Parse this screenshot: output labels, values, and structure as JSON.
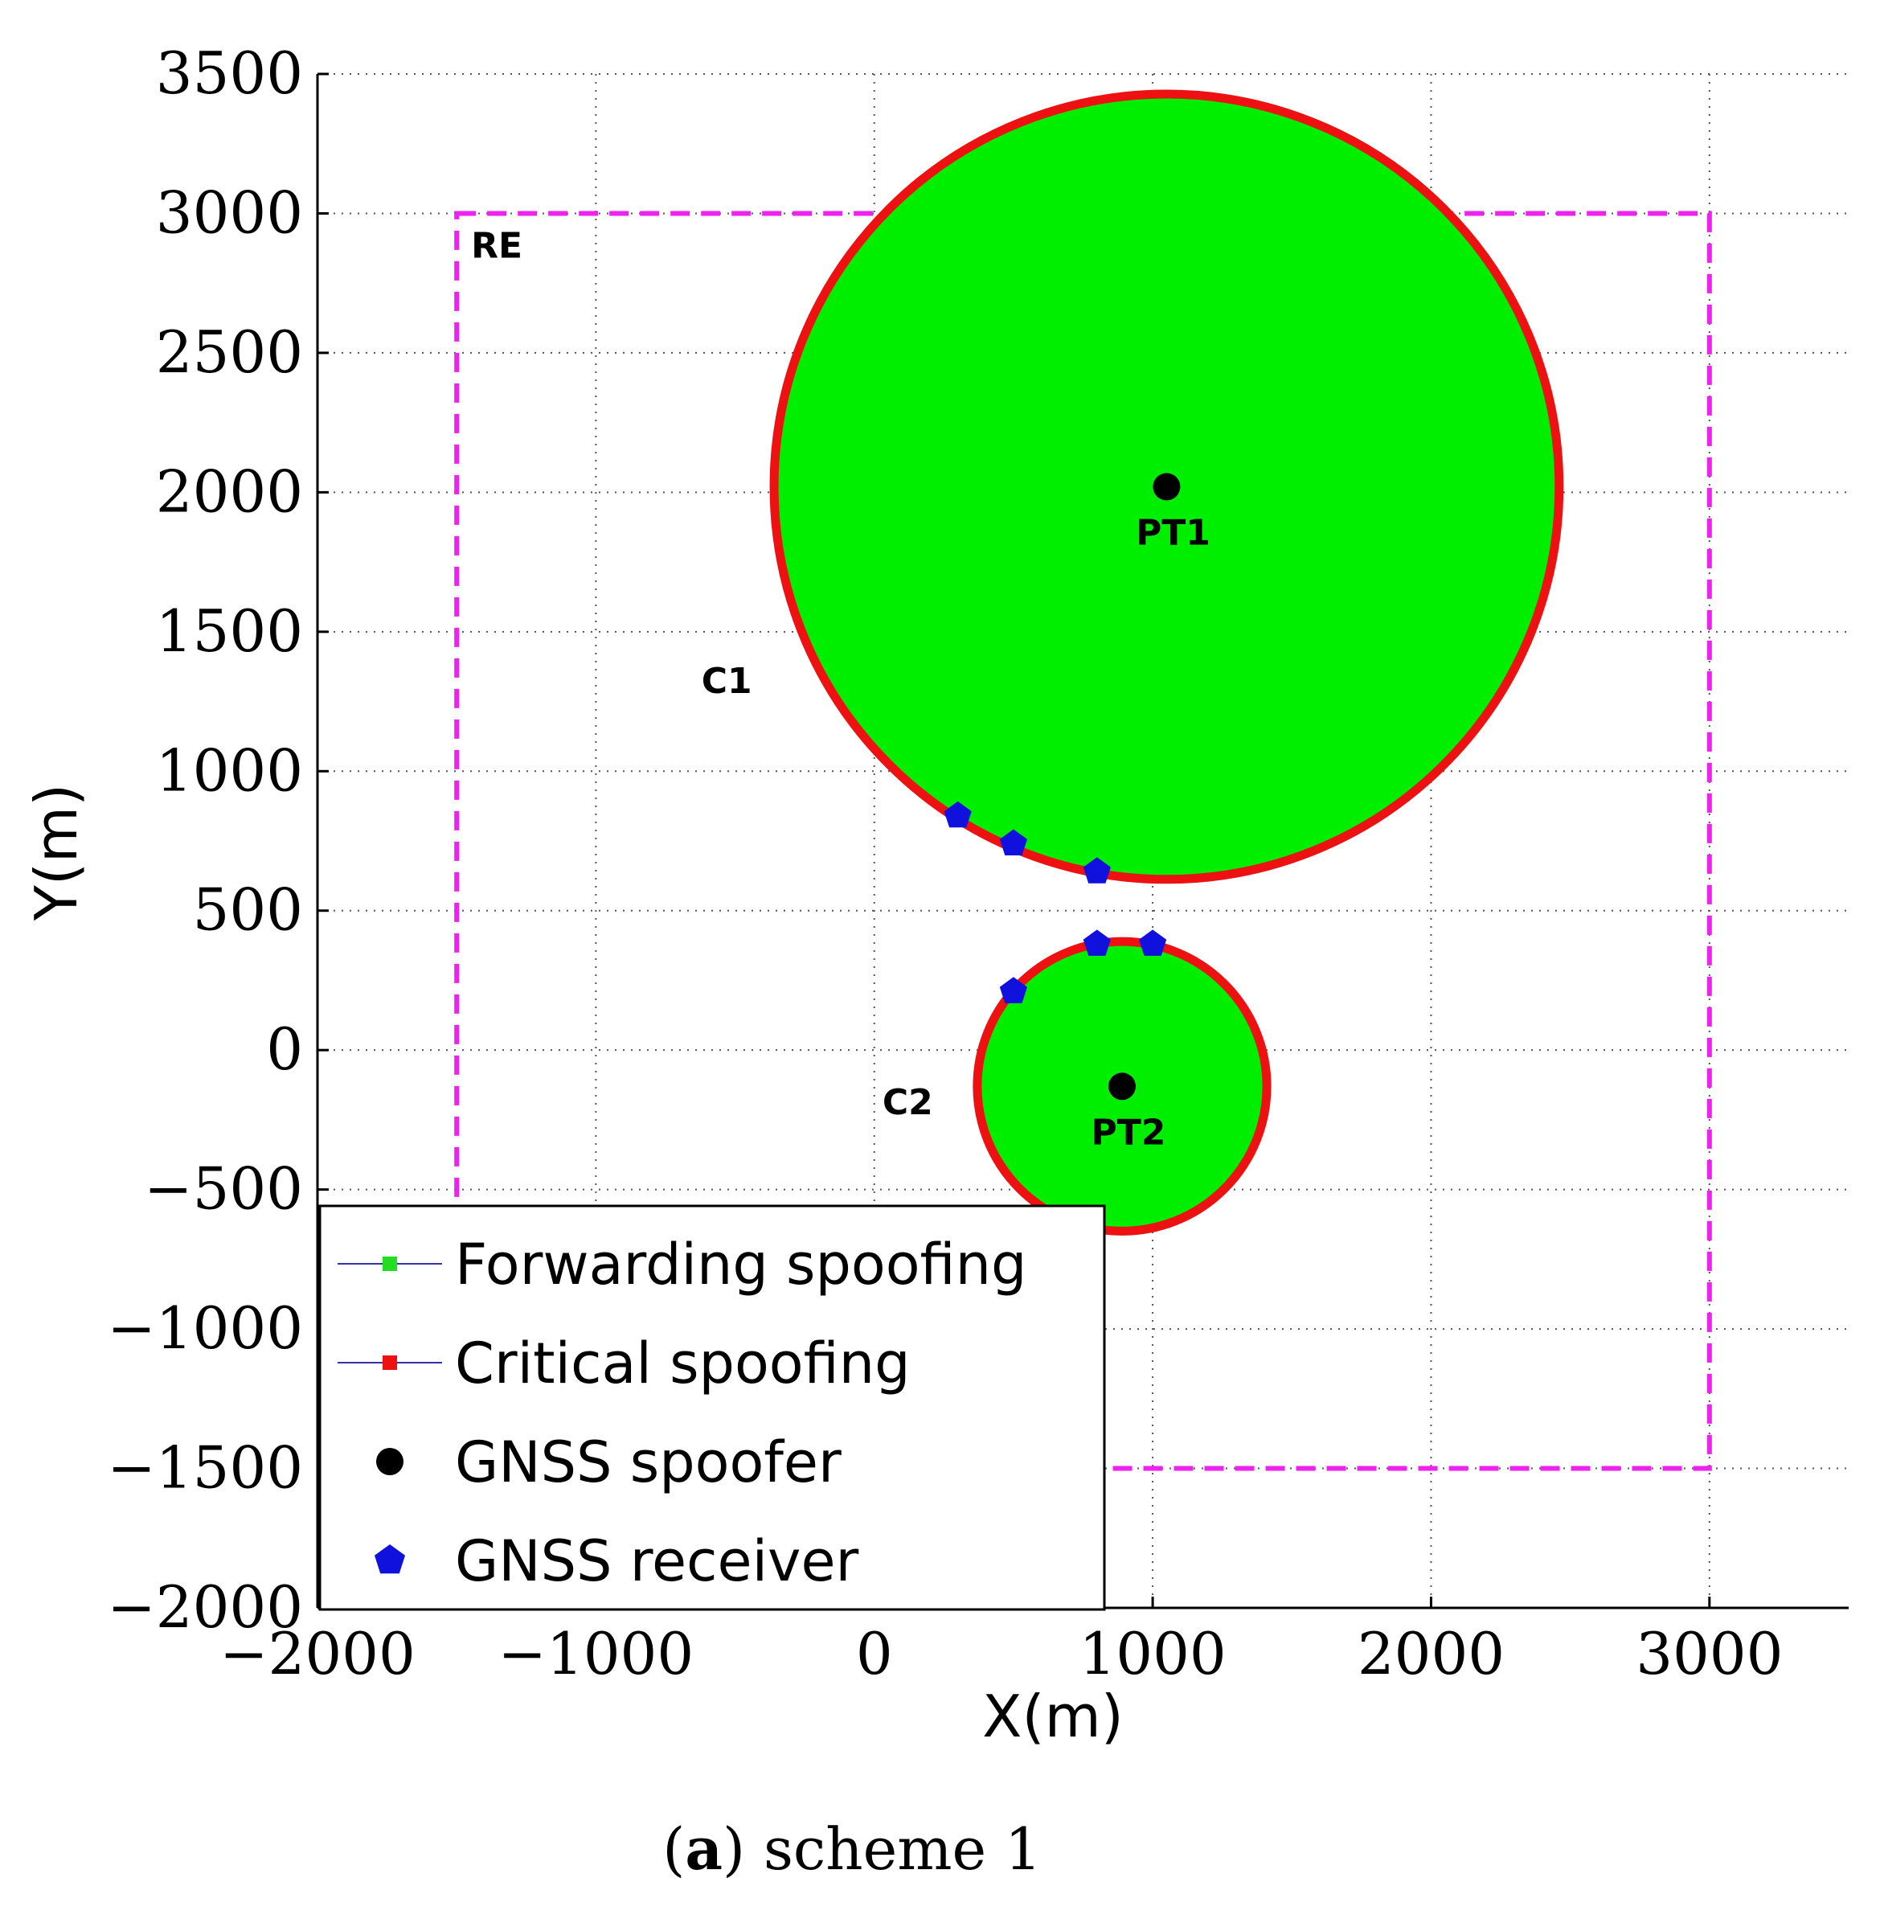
{
  "chart_data": {
    "type": "scatter",
    "xlabel": "X(m)",
    "ylabel": "Y(m)",
    "xlim": [
      -2000,
      3500
    ],
    "ylim": [
      -2000,
      3500
    ],
    "xticks": [
      -2000,
      -1000,
      0,
      1000,
      2000,
      3000
    ],
    "yticks": [
      -2000,
      -1500,
      -1000,
      -500,
      0,
      500,
      1000,
      1500,
      2000,
      2500,
      3000,
      3500
    ],
    "xtick_labels": [
      "−2000",
      "−1000",
      "0",
      "1000",
      "2000",
      "3000"
    ],
    "ytick_labels": [
      "−2000",
      "−1500",
      "−1000",
      "−500",
      "0",
      "500",
      "1000",
      "1500",
      "2000",
      "2500",
      "3000",
      "3500"
    ],
    "grid": true,
    "region": {
      "label": "RE",
      "x_range": [
        -1500,
        3000
      ],
      "y_range": [
        -1500,
        3000
      ],
      "color": "#ee22ee"
    },
    "spoofers": [
      {
        "label": "PT1",
        "x": 1050,
        "y": 2020
      },
      {
        "label": "PT2",
        "x": 890,
        "y": -130
      }
    ],
    "coverage_circles": [
      {
        "label": "C1",
        "label_x": -530,
        "label_y": 1280,
        "cx": 1050,
        "cy": 2020,
        "radius": 1410
      },
      {
        "label": "C2",
        "label_x": 120,
        "label_y": -230,
        "cx": 890,
        "cy": -130,
        "radius": 520
      }
    ],
    "receivers": [
      {
        "x": 300,
        "y": 840
      },
      {
        "x": 500,
        "y": 740
      },
      {
        "x": 800,
        "y": 640
      },
      {
        "x": 800,
        "y": 380
      },
      {
        "x": 1000,
        "y": 380
      },
      {
        "x": 500,
        "y": 210
      }
    ],
    "legend": {
      "location": "lower-left",
      "entries": [
        {
          "label": "Forwarding spoofing",
          "marker": "square",
          "color": "#22dd22",
          "line_color": "#3333aa"
        },
        {
          "label": "Critical spoofing",
          "marker": "square",
          "color": "#ee1111",
          "line_color": "#3333aa"
        },
        {
          "label": "GNSS spoofer",
          "marker": "circle",
          "color": "#000000"
        },
        {
          "label": "GNSS receiver",
          "marker": "pentagon",
          "color": "#1111dd"
        }
      ]
    },
    "colors": {
      "fill": "#00ee00",
      "outline": "#ee1111",
      "spoofer": "#000000",
      "receiver": "#1111dd"
    }
  },
  "caption": {
    "bold": "a",
    "open": "(",
    "rest": ") scheme 1"
  }
}
